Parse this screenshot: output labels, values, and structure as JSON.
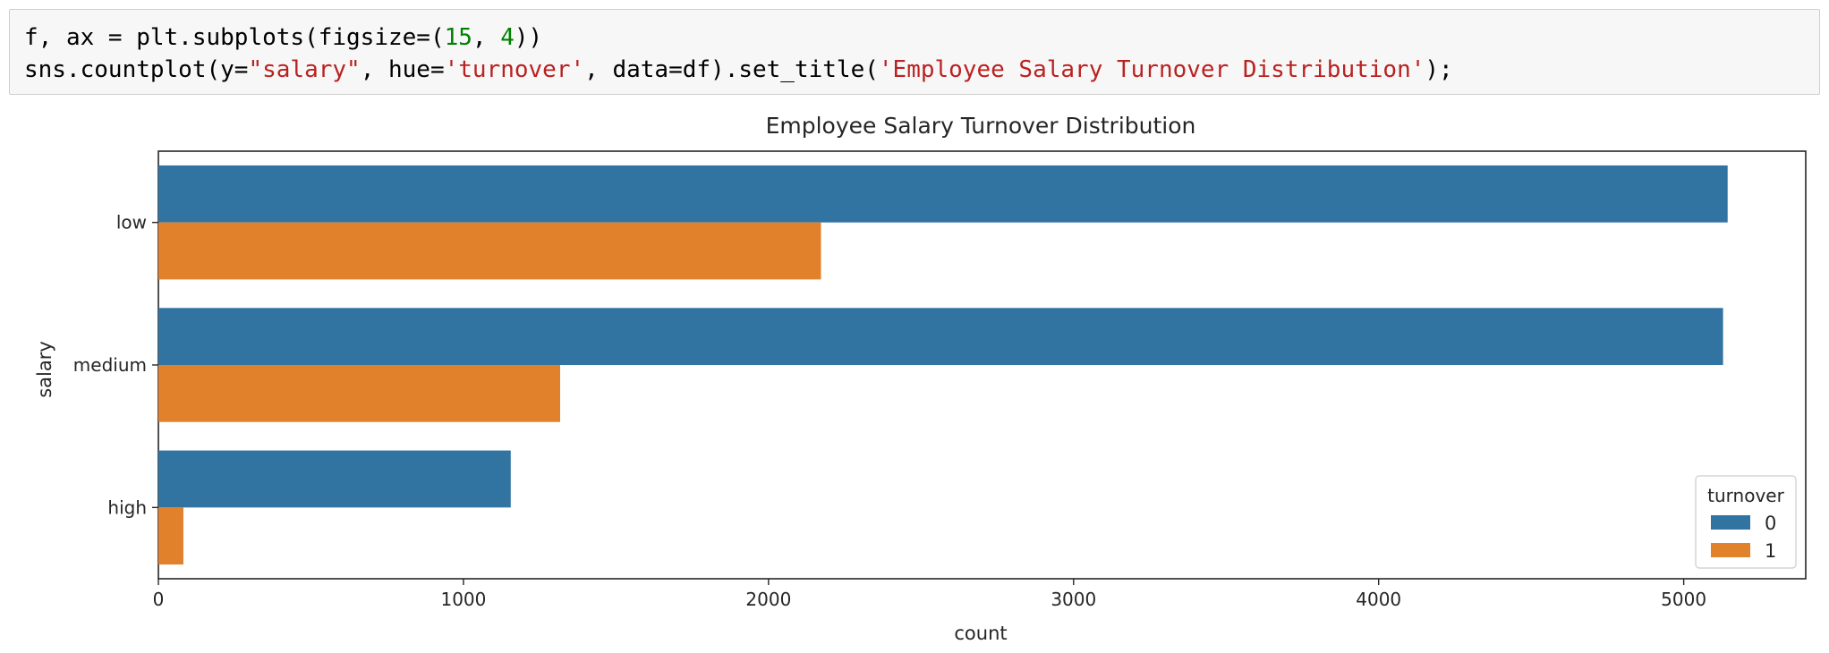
{
  "code_cell": {
    "line1": [
      {
        "t": "f, ax = plt.subplots(figsize=(",
        "k": "plain"
      },
      {
        "t": "15",
        "k": "num"
      },
      {
        "t": ", ",
        "k": "plain"
      },
      {
        "t": "4",
        "k": "num"
      },
      {
        "t": "))",
        "k": "plain"
      }
    ],
    "line2": [
      {
        "t": "sns.countplot(y=",
        "k": "plain"
      },
      {
        "t": "\"salary\"",
        "k": "str"
      },
      {
        "t": ", hue=",
        "k": "plain"
      },
      {
        "t": "'turnover'",
        "k": "str"
      },
      {
        "t": ", data=df).set_title(",
        "k": "plain"
      },
      {
        "t": "'Employee Salary Turnover Distribution'",
        "k": "str"
      },
      {
        "t": ");",
        "k": "plain"
      }
    ]
  },
  "chart_data": {
    "type": "bar",
    "orientation": "horizontal",
    "title": "Employee Salary Turnover Distribution",
    "xlabel": "count",
    "ylabel": "salary",
    "categories": [
      "low",
      "medium",
      "high"
    ],
    "series": [
      {
        "name": "0",
        "values": [
          5144,
          5129,
          1155
        ],
        "color": "#3274a1"
      },
      {
        "name": "1",
        "values": [
          2172,
          1317,
          82
        ],
        "color": "#e1812c"
      }
    ],
    "xlim": [
      0,
      5400
    ],
    "xticks": [
      0,
      1000,
      2000,
      3000,
      4000,
      5000
    ],
    "legend": {
      "title": "turnover",
      "placement": "lower-right"
    },
    "grid": false
  }
}
